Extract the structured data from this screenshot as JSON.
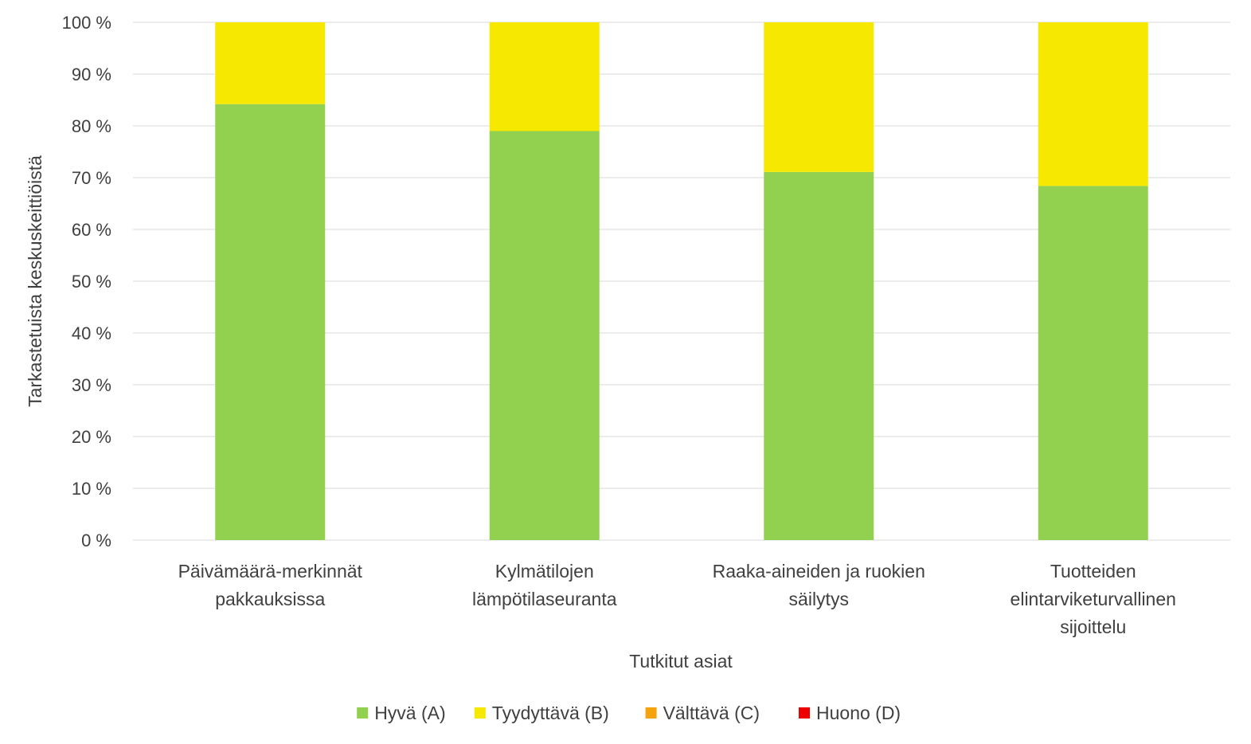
{
  "chart_data": {
    "type": "bar",
    "stacked": true,
    "stack_mode": "percent",
    "categories": [
      [
        "Päivämäärä-merkinnät",
        "pakkauksissa"
      ],
      [
        "Kylmätilojen",
        "lämpötilaseuranta"
      ],
      [
        "Raaka-aineiden ja ruokien",
        "säilytys"
      ],
      [
        "Tuotteiden",
        "elintarviketurvallinen",
        "sijoittelu"
      ]
    ],
    "series": [
      {
        "name": "Hyvä (A)",
        "color": "#92d050",
        "values": [
          84.2,
          79.0,
          71.1,
          68.4
        ]
      },
      {
        "name": "Tyydyttävä (B)",
        "color": "#f7e800",
        "values": [
          15.8,
          21.0,
          28.9,
          31.6
        ]
      },
      {
        "name": "Välttävä (C)",
        "color": "#f5a30a",
        "values": [
          0,
          0,
          0,
          0
        ]
      },
      {
        "name": "Huono (D)",
        "color": "#ee0000",
        "values": [
          0,
          0,
          0,
          0
        ]
      }
    ],
    "title": "",
    "xlabel": "Tutkitut asiat",
    "ylabel": "Tarkastetuista keskuskeittiöistä",
    "ylim": [
      0,
      100
    ],
    "y_ticks": [
      "0 %",
      "10 %",
      "20 %",
      "30 %",
      "40 %",
      "50 %",
      "60 %",
      "70 %",
      "80 %",
      "90 %",
      "100 %"
    ],
    "grid": true,
    "legend_position": "bottom"
  }
}
